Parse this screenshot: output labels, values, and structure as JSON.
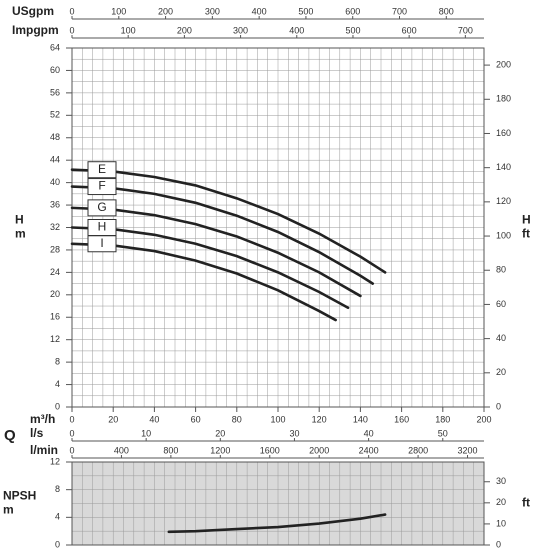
{
  "chart_data": [
    {
      "type": "line",
      "y_label": "H",
      "y_unit": "m",
      "y2_label": "H",
      "y2_unit": "ft",
      "x_label": "m³/h",
      "flow_label": "Q",
      "xlim": [
        0,
        200
      ],
      "xticks": [
        0,
        20,
        40,
        60,
        80,
        100,
        120,
        140,
        160,
        180,
        200
      ],
      "ylim": [
        0,
        64
      ],
      "yticks": [
        0,
        4,
        8,
        12,
        16,
        20,
        24,
        28,
        32,
        36,
        40,
        44,
        48,
        52,
        56,
        60,
        64
      ],
      "y2lim": [
        0,
        210
      ],
      "y2ticks": [
        0,
        20,
        40,
        60,
        80,
        100,
        120,
        140,
        160,
        180,
        200
      ],
      "grid": true,
      "secondary_x_axes": [
        {
          "label": "USgpm",
          "position": "top",
          "xlim": [
            0,
            880.6
          ],
          "xticks": [
            0,
            100,
            200,
            300,
            400,
            500,
            600,
            700,
            800
          ]
        },
        {
          "label": "Impgpm",
          "position": "top",
          "xlim": [
            0,
            733.2
          ],
          "xticks": [
            0,
            100,
            200,
            300,
            400,
            500,
            600,
            700
          ]
        },
        {
          "label": "l/s",
          "position": "bottom",
          "xlim": [
            0,
            55.56
          ],
          "xticks": [
            0,
            10,
            20,
            30,
            40,
            50
          ]
        },
        {
          "label": "l/min",
          "position": "bottom",
          "xlim": [
            0,
            3333.3
          ],
          "xticks": [
            0,
            400,
            800,
            1200,
            1600,
            2000,
            2400,
            2800,
            3200
          ]
        }
      ],
      "series": [
        {
          "name": "E",
          "color": "#222222",
          "x": [
            0,
            20,
            40,
            60,
            80,
            100,
            120,
            140,
            152
          ],
          "values": [
            42.3,
            42.0,
            41.0,
            39.5,
            37.2,
            34.4,
            30.9,
            26.8,
            24.0
          ]
        },
        {
          "name": "F",
          "color": "#222222",
          "x": [
            0,
            20,
            40,
            60,
            80,
            100,
            120,
            140,
            146
          ],
          "values": [
            39.3,
            39.0,
            38.0,
            36.4,
            34.1,
            31.2,
            27.6,
            23.4,
            22.0
          ]
        },
        {
          "name": "G",
          "color": "#222222",
          "x": [
            0,
            20,
            40,
            60,
            80,
            100,
            120,
            140
          ],
          "values": [
            35.5,
            35.2,
            34.2,
            32.6,
            30.4,
            27.5,
            24.0,
            19.8
          ]
        },
        {
          "name": "H",
          "color": "#222222",
          "x": [
            0,
            20,
            40,
            60,
            80,
            100,
            120,
            134
          ],
          "values": [
            32.0,
            31.7,
            30.7,
            29.1,
            26.9,
            24.0,
            20.5,
            17.7
          ]
        },
        {
          "name": "I",
          "color": "#222222",
          "x": [
            0,
            20,
            40,
            60,
            80,
            100,
            120,
            128
          ],
          "values": [
            29.1,
            28.8,
            27.8,
            26.1,
            23.8,
            20.8,
            17.1,
            15.5
          ]
        }
      ]
    },
    {
      "type": "line",
      "y_label": "NPSH",
      "y_unit": "m",
      "y2_unit": "ft",
      "xlim": [
        0,
        200
      ],
      "ylim": [
        0,
        12
      ],
      "yticks": [
        0,
        4,
        8,
        12
      ],
      "y2lim": [
        0,
        39.37
      ],
      "y2ticks": [
        0,
        10,
        20,
        30
      ],
      "grid": true,
      "background": "#d9d9d9",
      "series": [
        {
          "color": "#222222",
          "x": [
            47,
            60,
            80,
            100,
            120,
            140,
            152
          ],
          "values": [
            1.9,
            2.0,
            2.3,
            2.6,
            3.1,
            3.8,
            4.4
          ]
        }
      ]
    }
  ]
}
